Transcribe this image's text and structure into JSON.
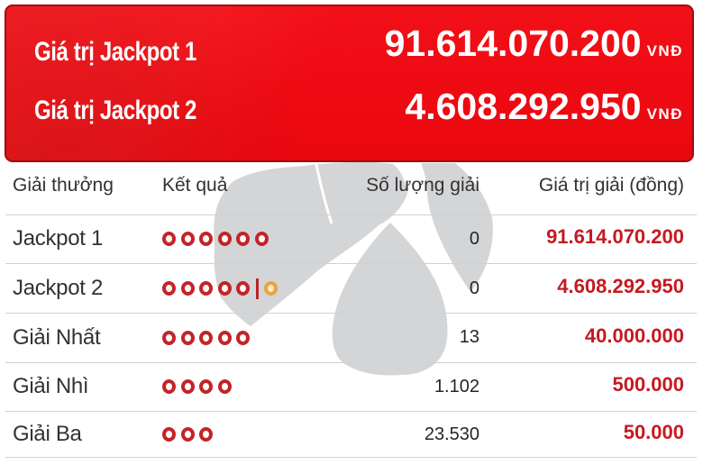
{
  "jackpot_panel": {
    "rows": [
      {
        "label": "Giá trị Jackpot 1",
        "value": "91.614.070.200",
        "currency": "VNĐ"
      },
      {
        "label": "Giá trị Jackpot 2",
        "value": "4.608.292.950",
        "currency": "VNĐ"
      }
    ]
  },
  "results_table": {
    "headers": {
      "prize": "Giải thưởng",
      "result": "Kết quả",
      "count": "Số lượng giải",
      "value": "Giá trị giải (đồng)"
    },
    "rows": [
      {
        "prize": "Jackpot 1",
        "red_balls": 6,
        "has_extra_ball": false,
        "count": "0",
        "value": "91.614.070.200"
      },
      {
        "prize": "Jackpot 2",
        "red_balls": 5,
        "has_extra_ball": true,
        "count": "0",
        "value": "4.608.292.950"
      },
      {
        "prize": "Giải Nhất",
        "red_balls": 5,
        "has_extra_ball": false,
        "count": "13",
        "value": "40.000.000"
      },
      {
        "prize": "Giải Nhì",
        "red_balls": 4,
        "has_extra_ball": false,
        "count": "1.102",
        "value": "500.000"
      },
      {
        "prize": "Giải Ba",
        "red_balls": 3,
        "has_extra_ball": false,
        "count": "23.530",
        "value": "50.000"
      }
    ]
  },
  "colors": {
    "panel_red": "#ee0a12",
    "panel_border": "#a00c11",
    "value_red": "#c41a21",
    "ball_red": "#c2242a",
    "ball_amber": "#e8a43f",
    "watermark_grey": "#d4d5d7",
    "separator_grey": "#d0d1d2",
    "text_dark": "#323232"
  }
}
